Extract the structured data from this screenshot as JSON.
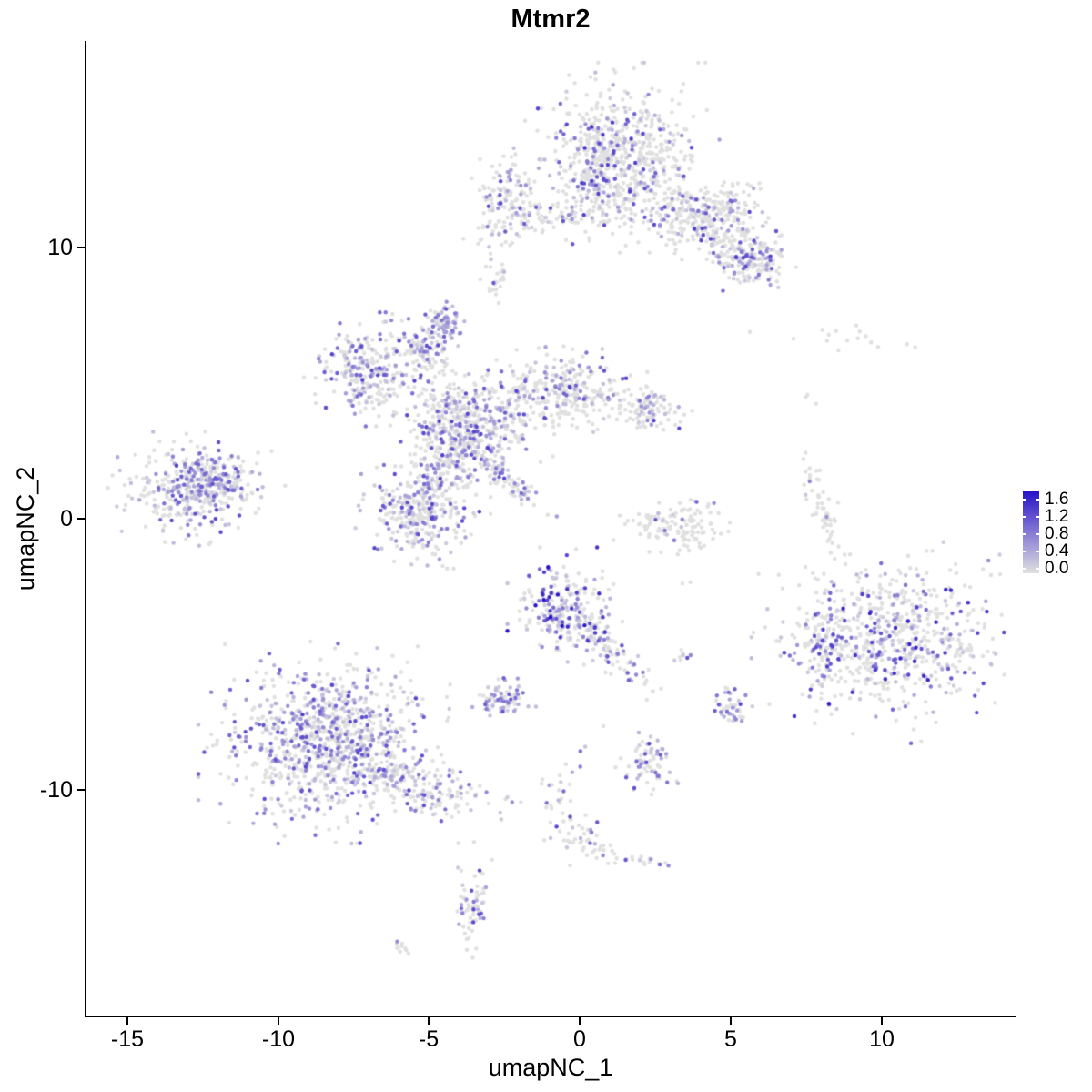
{
  "chart_data": {
    "type": "scatter",
    "title": "Mtmr2",
    "xlabel": "umapNC_1",
    "ylabel": "umapNC_2",
    "xlim": [
      -16.35,
      14.4
    ],
    "ylim": [
      -18.35,
      17.6
    ],
    "x_ticks": [
      "-15",
      "-10",
      "-5",
      "0",
      "5",
      "10"
    ],
    "x_tick_values": [
      -15,
      -10,
      -5,
      0,
      5,
      10
    ],
    "y_ticks": [
      "10",
      "0",
      "-10"
    ],
    "y_tick_values": [
      10,
      0,
      -10
    ],
    "grid": false,
    "background_color": "#FFFFFF",
    "axis_color": "#000000",
    "point_radius": 2.2,
    "legend": {
      "position": "right",
      "ticks": [
        "1.6",
        "1.2",
        "0.8",
        "0.4",
        "0.0"
      ],
      "tick_values": [
        1.6,
        1.2,
        0.8,
        0.4,
        0.0
      ],
      "low_color": "#E0E0E0",
      "high_color": "#2812C8",
      "max_value": 1.6
    },
    "clusters": [
      {
        "name": "top-main",
        "cx": 1.4,
        "cy": 13.3,
        "sx": 1.15,
        "sy": 1.25,
        "n": 620,
        "frac": 0.22,
        "vmax": 1.4
      },
      {
        "name": "top-main-west-edge",
        "cx": 0.4,
        "cy": 12.4,
        "sx": 0.45,
        "sy": 0.9,
        "n": 120,
        "frac": 0.3
      },
      {
        "name": "top-arm",
        "cx": 4.0,
        "cy": 10.8,
        "sx": 1.25,
        "sy": 0.5,
        "rot": -30,
        "n": 260,
        "frac": 0.3
      },
      {
        "name": "top-arm-tip",
        "cx": 5.6,
        "cy": 9.6,
        "sx": 0.55,
        "sy": 0.45,
        "n": 140,
        "frac": 0.4
      },
      {
        "name": "top-arm-upper",
        "cx": 4.9,
        "cy": 11.7,
        "sx": 0.65,
        "sy": 0.4,
        "n": 90,
        "frac": 0.25
      },
      {
        "name": "top-west-cluster",
        "cx": -2.4,
        "cy": 11.5,
        "sx": 0.6,
        "sy": 0.8,
        "n": 150,
        "frac": 0.3
      },
      {
        "name": "top-bridge",
        "cx": -0.6,
        "cy": 11.1,
        "sx": 0.9,
        "sy": 0.2,
        "n": 50,
        "frac": 0.15
      },
      {
        "name": "small-high-left",
        "cx": -2.8,
        "cy": 8.7,
        "sx": 0.18,
        "sy": 0.3,
        "n": 22,
        "frac": 0.15
      },
      {
        "name": "mid-nw-lobe",
        "cx": -6.9,
        "cy": 5.5,
        "sx": 0.8,
        "sy": 0.75,
        "n": 280,
        "frac": 0.45
      },
      {
        "name": "mid-knob",
        "cx": -4.5,
        "cy": 7.2,
        "sx": 0.28,
        "sy": 0.34,
        "n": 80,
        "frac": 0.65,
        "vmax": 1.1
      },
      {
        "name": "mid-neck",
        "cx": -5.1,
        "cy": 6.1,
        "sx": 0.35,
        "sy": 0.45,
        "n": 90,
        "frac": 0.35
      },
      {
        "name": "mid-core",
        "cx": -3.7,
        "cy": 3.5,
        "sx": 1.0,
        "sy": 0.85,
        "n": 480,
        "frac": 0.4
      },
      {
        "name": "mid-east",
        "cx": -0.6,
        "cy": 4.7,
        "sx": 1.15,
        "sy": 0.6,
        "n": 300,
        "frac": 0.28
      },
      {
        "name": "mid-east-arm",
        "cx": 2.2,
        "cy": 4.0,
        "sx": 0.55,
        "sy": 0.38,
        "n": 100,
        "frac": 0.3
      },
      {
        "name": "mid-south-lobe",
        "cx": -5.2,
        "cy": 0.4,
        "sx": 0.8,
        "sy": 0.8,
        "n": 330,
        "frac": 0.42
      },
      {
        "name": "mid-bridge",
        "cx": -4.4,
        "cy": 2.0,
        "sx": 0.45,
        "sy": 0.55,
        "n": 90,
        "frac": 0.35
      },
      {
        "name": "mid-streak",
        "cx": -2.6,
        "cy": 1.6,
        "sx": 0.85,
        "sy": 0.2,
        "rot": -42,
        "n": 90,
        "frac": 0.4
      },
      {
        "name": "west-cluster",
        "cx": -12.7,
        "cy": 1.1,
        "sx": 1.05,
        "sy": 0.75,
        "n": 380,
        "frac": 0.4
      },
      {
        "name": "west-core",
        "cx": -12.2,
        "cy": 1.3,
        "sx": 0.45,
        "sy": 0.35,
        "n": 90,
        "frac": 0.7,
        "vmax": 1.1
      },
      {
        "name": "ne-sparse",
        "cx": 8.6,
        "cy": 6.6,
        "sx": 1.3,
        "sy": 0.25,
        "n": 16,
        "frac": 0.05
      },
      {
        "name": "ne-dot",
        "cx": 7.6,
        "cy": 4.6,
        "sx": 0.12,
        "sy": 0.3,
        "n": 3,
        "frac": 0
      },
      {
        "name": "east-arc",
        "cx": 8.1,
        "cy": 0.3,
        "sx": 0.22,
        "sy": 0.85,
        "rot": 18,
        "n": 55,
        "frac": 0.05
      },
      {
        "name": "center-smile",
        "cx": 3.2,
        "cy": -0.2,
        "sx": 0.8,
        "sy": 0.5,
        "n": 130,
        "frac": 0.12
      },
      {
        "name": "center-south",
        "cx": -0.5,
        "cy": -3.3,
        "sx": 0.68,
        "sy": 0.8,
        "n": 240,
        "frac": 0.55,
        "vmax": 1.6
      },
      {
        "name": "center-south-tail",
        "cx": 1.0,
        "cy": -4.9,
        "sx": 0.85,
        "sy": 0.28,
        "rot": -48,
        "n": 90,
        "frac": 0.45
      },
      {
        "name": "small-dense",
        "cx": -2.5,
        "cy": -6.7,
        "sx": 0.38,
        "sy": 0.32,
        "n": 80,
        "frac": 0.7,
        "vmax": 1.1
      },
      {
        "name": "sw-main",
        "cx": -8.3,
        "cy": -8.2,
        "sx": 1.55,
        "sy": 1.35,
        "n": 950,
        "frac": 0.45
      },
      {
        "name": "sw-tail",
        "cx": -5.2,
        "cy": -9.9,
        "sx": 1.25,
        "sy": 0.45,
        "rot": -18,
        "n": 170,
        "frac": 0.35
      },
      {
        "name": "se-main",
        "cx": 10.3,
        "cy": -4.5,
        "sx": 1.65,
        "sy": 1.35,
        "n": 680,
        "frac": 0.32,
        "vmax": 1.5
      },
      {
        "name": "se-west-hook",
        "cx": 8.0,
        "cy": -4.3,
        "sx": 0.4,
        "sy": 0.8,
        "n": 80,
        "frac": 0.35
      },
      {
        "name": "small-s1",
        "cx": 5.0,
        "cy": -6.9,
        "sx": 0.28,
        "sy": 0.38,
        "n": 45,
        "frac": 0.5
      },
      {
        "name": "tiny-pair",
        "cx": 3.4,
        "cy": -5.1,
        "sx": 0.18,
        "sy": 0.15,
        "n": 8,
        "frac": 0.3
      },
      {
        "name": "small-s2",
        "cx": 2.3,
        "cy": -8.9,
        "sx": 0.4,
        "sy": 0.55,
        "n": 70,
        "frac": 0.5
      },
      {
        "name": "trail-1",
        "cx": -0.8,
        "cy": -10.4,
        "sx": 0.3,
        "sy": 0.85,
        "n": 30,
        "frac": 0.2
      },
      {
        "name": "trail-2",
        "cx": 0.1,
        "cy": -11.7,
        "sx": 0.35,
        "sy": 0.4,
        "n": 28,
        "frac": 0.3
      },
      {
        "name": "trail-3",
        "cx": 1.5,
        "cy": -12.4,
        "sx": 0.9,
        "sy": 0.16,
        "rot": -12,
        "n": 32,
        "frac": 0.1
      },
      {
        "name": "south-finger",
        "cx": -3.6,
        "cy": -14.3,
        "sx": 0.28,
        "sy": 0.85,
        "n": 65,
        "frac": 0.35
      },
      {
        "name": "south-tiny",
        "cx": -6.0,
        "cy": -15.8,
        "sx": 0.22,
        "sy": 0.13,
        "n": 10,
        "frac": 0.3
      },
      {
        "name": "stray-a",
        "cx": 0.8,
        "cy": -7.7,
        "sx": 0.08,
        "sy": 0.08,
        "n": 1,
        "frac": 0
      },
      {
        "name": "stray-b",
        "cx": 7.45,
        "cy": 2.2,
        "sx": 0.12,
        "sy": 0.45,
        "n": 3,
        "frac": 0
      },
      {
        "name": "stray-c",
        "cx": -0.15,
        "cy": -9.0,
        "sx": 0.25,
        "sy": 0.3,
        "n": 3,
        "frac": 0.2
      },
      {
        "name": "stray-d",
        "cx": 3.5,
        "cy": -2.4,
        "sx": 0.15,
        "sy": 0.1,
        "n": 2,
        "frac": 0.5
      }
    ]
  }
}
